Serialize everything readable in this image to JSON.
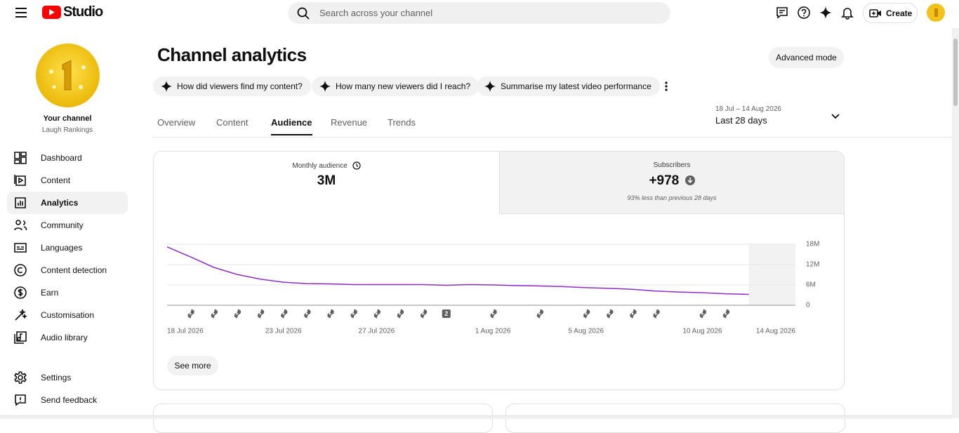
{
  "topbar": {
    "logo": "Studio",
    "search_placeholder": "Search across your channel",
    "create": "Create"
  },
  "sidebar": {
    "channel_title": "Your channel",
    "channel_name": "Laugh Rankings",
    "nav": [
      "Dashboard",
      "Content",
      "Analytics",
      "Community",
      "Languages",
      "Content detection",
      "Earn",
      "Customisation",
      "Audio library"
    ],
    "active_index": 2,
    "footer": [
      "Settings",
      "Send feedback"
    ]
  },
  "page": {
    "title": "Channel analytics",
    "advanced": "Advanced mode",
    "prompts": [
      "How did viewers find my content?",
      "How many new viewers did I reach?",
      "Summarise my latest video performance"
    ],
    "tabs": [
      "Overview",
      "Content",
      "Audience",
      "Revenue",
      "Trends"
    ],
    "active_tab": 2,
    "date_range": "18 Jul – 14 Aug 2026",
    "period": "Last 28 days"
  },
  "cards": [
    {
      "label": "Monthly audience",
      "value": "3M"
    },
    {
      "label": "Subscribers",
      "value": "+978",
      "note": "93% less than previous 28 days"
    }
  ],
  "chart": {
    "type": "line",
    "color": "#8e2dc5",
    "grid": true,
    "x": [
      "2026-07-18",
      "2026-07-19",
      "2026-07-20",
      "2026-07-21",
      "2026-07-22",
      "2026-07-23",
      "2026-07-24",
      "2026-07-25",
      "2026-07-26",
      "2026-07-27",
      "2026-07-28",
      "2026-07-29",
      "2026-07-30",
      "2026-07-31",
      "2026-08-01",
      "2026-08-02",
      "2026-08-03",
      "2026-08-04",
      "2026-08-05",
      "2026-08-06",
      "2026-08-07",
      "2026-08-08",
      "2026-08-09",
      "2026-08-10",
      "2026-08-11",
      "2026-08-12"
    ],
    "values": [
      17200000,
      14300000,
      11200000,
      9100000,
      7700000,
      6800000,
      6400000,
      6300000,
      6100000,
      6100000,
      6100000,
      6100000,
      5900000,
      6100000,
      6000000,
      5800000,
      5700000,
      5500000,
      5200000,
      5000000,
      4700000,
      4200000,
      3900000,
      3700000,
      3400000,
      3200000
    ],
    "xlim": [
      "2026-07-18",
      "2026-08-14"
    ],
    "xticks": [
      {
        "value": "2026-07-18",
        "label": "18 Jul 2026"
      },
      {
        "value": "2026-07-23",
        "label": "23 Jul 2026"
      },
      {
        "value": "2026-07-27",
        "label": "27 Jul 2026"
      },
      {
        "value": "2026-08-01",
        "label": "1 Aug 2026"
      },
      {
        "value": "2026-08-05",
        "label": "5 Aug 2026"
      },
      {
        "value": "2026-08-10",
        "label": "10 Aug 2026"
      },
      {
        "value": "2026-08-14",
        "label": "14 Aug 2026"
      }
    ],
    "ylim": [
      0,
      18000000
    ],
    "yticks": [
      0,
      {
        "value": 6000000,
        "label": "6M"
      },
      {
        "value": 12000000,
        "label": "12M"
      },
      {
        "value": 18000000,
        "label": "18M"
      }
    ],
    "uploads": [
      {
        "x": "2026-07-19"
      },
      {
        "x": "2026-07-20"
      },
      {
        "x": "2026-07-21"
      },
      {
        "x": "2026-07-22"
      },
      {
        "x": "2026-07-23"
      },
      {
        "x": "2026-07-24"
      },
      {
        "x": "2026-07-25"
      },
      {
        "x": "2026-07-26"
      },
      {
        "x": "2026-07-27"
      },
      {
        "x": "2026-07-28"
      },
      {
        "x": "2026-07-29"
      },
      {
        "x": "2026-07-30",
        "label": "2"
      },
      {
        "x": "2026-08-01"
      },
      {
        "x": "2026-08-03"
      },
      {
        "x": "2026-08-05"
      },
      {
        "x": "2026-08-06"
      },
      {
        "x": "2026-08-07"
      },
      {
        "x": "2026-08-08"
      },
      {
        "x": "2026-08-10"
      },
      {
        "x": "2026-08-11"
      }
    ]
  },
  "see_more": "See more"
}
